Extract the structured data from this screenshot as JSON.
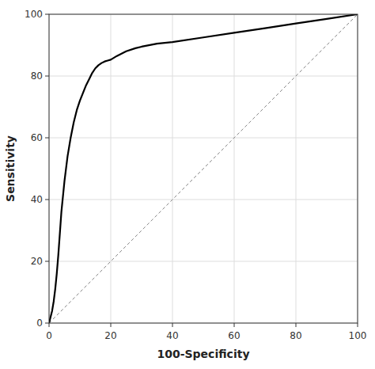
{
  "chart_data": {
    "type": "line",
    "xlabel": "100-Specificity",
    "ylabel": "Sensitivity",
    "x": [
      0,
      0.5,
      1,
      1.5,
      2,
      2.5,
      3,
      3.5,
      4,
      5,
      6,
      7,
      8,
      9,
      10,
      11,
      12,
      13,
      14,
      15,
      16,
      17,
      18,
      19,
      20,
      22,
      25,
      28,
      30,
      35,
      40,
      50,
      60,
      70,
      80,
      90,
      100
    ],
    "series": [
      {
        "color": "#000000",
        "values": [
          0,
          2,
          4,
          7,
          11,
          16,
          22,
          29,
          36,
          46,
          54,
          60,
          65,
          69,
          72,
          74.5,
          77,
          79,
          81,
          82.5,
          83.5,
          84.2,
          84.7,
          85.0,
          85.3,
          86.5,
          88,
          89,
          89.5,
          90.5,
          91,
          92.5,
          94,
          95.5,
          97,
          98.5,
          100
        ]
      }
    ],
    "xlim": [
      0,
      100
    ],
    "ylim": [
      0,
      100
    ],
    "xticks": [
      0,
      20,
      40,
      60,
      80,
      100
    ],
    "yticks": [
      0,
      20,
      40,
      60,
      80,
      100
    ],
    "grid": true
  }
}
